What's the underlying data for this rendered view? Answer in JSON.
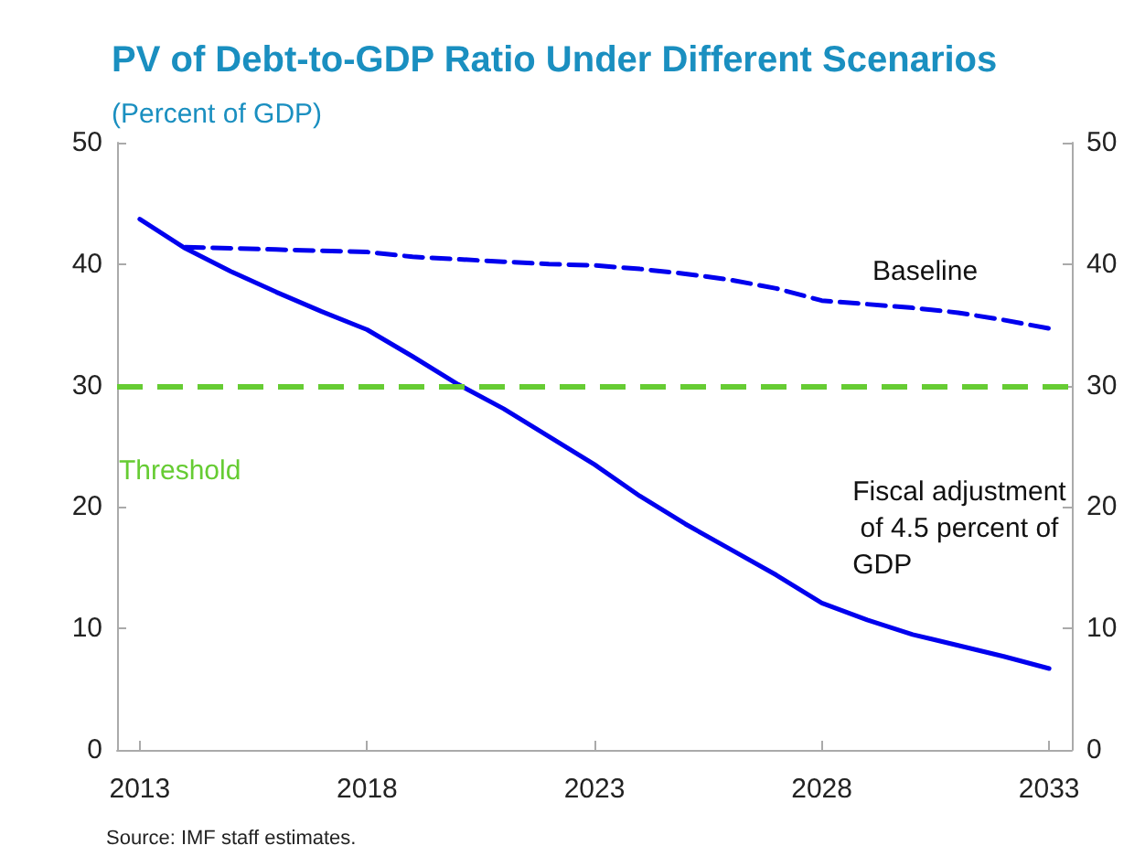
{
  "chart_data": {
    "type": "line",
    "title": "PV of Debt-to-GDP Ratio Under Different Scenarios",
    "subtitle": "(Percent of GDP)",
    "x": [
      2013,
      2014,
      2015,
      2016,
      2017,
      2018,
      2019,
      2020,
      2021,
      2022,
      2023,
      2024,
      2025,
      2026,
      2027,
      2028,
      2029,
      2030,
      2031,
      2032,
      2033
    ],
    "series": [
      {
        "name": "Fiscal adjustment of 4.5 percent of GDP",
        "color": "#0000ee",
        "line_style": "solid",
        "values": [
          43.7,
          41.3,
          39.4,
          37.7,
          36.1,
          34.6,
          32.4,
          30.1,
          28.1,
          25.8,
          23.5,
          20.9,
          18.6,
          16.5,
          14.4,
          12.1,
          10.7,
          9.5,
          8.6,
          7.7,
          6.7
        ]
      },
      {
        "name": "Baseline",
        "color": "#0000ee",
        "line_style": "dashed",
        "values": [
          null,
          41.4,
          41.3,
          41.2,
          41.1,
          41.0,
          40.6,
          40.4,
          40.2,
          40.0,
          39.9,
          39.6,
          39.2,
          38.7,
          38.0,
          37.0,
          36.7,
          36.4,
          36.0,
          35.4,
          34.7
        ]
      }
    ],
    "annotations": [
      "Source: IMF staff estimates."
    ],
    "ref_lines": [
      {
        "axis": "y",
        "value": 30,
        "label": "Threshold",
        "color": "#66cc33",
        "line_style": "dashed"
      }
    ],
    "xlim": [
      2012.5,
      2033.5
    ],
    "xticks": [
      2013,
      2018,
      2023,
      2028,
      2033
    ],
    "ylim": [
      0,
      50
    ],
    "yticks": [
      0,
      10,
      20,
      30,
      40,
      50
    ],
    "y2lim": [
      0,
      50
    ],
    "y2ticks": [
      0,
      10,
      20,
      30,
      40,
      50
    ],
    "grid": false,
    "legend": false,
    "marker": "none"
  }
}
